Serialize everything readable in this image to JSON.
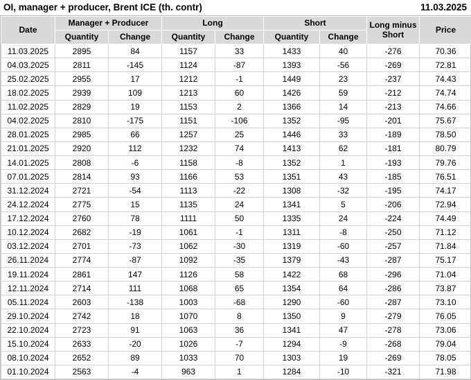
{
  "header": {
    "title": "OI, manager + producer, Brent ICE (th. contr)",
    "report_date": "11.03.2025"
  },
  "colors": {
    "positive_change": "#008000",
    "negative_change": "#cc0000",
    "header_bg": "#d9d9d9"
  },
  "table": {
    "col_date": "Date",
    "groups": {
      "mp": "Manager + Producer",
      "long": "Long",
      "short": "Short"
    },
    "sub": {
      "quantity": "Quantity",
      "change": "Change"
    },
    "col_lms": "Long minus Short",
    "col_price": "Price",
    "rows": [
      {
        "date": "11.03.2025",
        "mp_qty": 2895,
        "mp_chg": 84,
        "long_qty": 1157,
        "long_chg": 33,
        "short_qty": 1433,
        "short_chg": 40,
        "lms": -276,
        "price": "70.36"
      },
      {
        "date": "04.03.2025",
        "mp_qty": 2811,
        "mp_chg": -145,
        "long_qty": 1124,
        "long_chg": -87,
        "short_qty": 1393,
        "short_chg": -56,
        "lms": -269,
        "price": "72.81"
      },
      {
        "date": "25.02.2025",
        "mp_qty": 2955,
        "mp_chg": 17,
        "long_qty": 1212,
        "long_chg": -1,
        "short_qty": 1449,
        "short_chg": 23,
        "lms": -237,
        "price": "74.43"
      },
      {
        "date": "18.02.2025",
        "mp_qty": 2939,
        "mp_chg": 109,
        "long_qty": 1213,
        "long_chg": 60,
        "short_qty": 1426,
        "short_chg": 59,
        "lms": -212,
        "price": "74.74"
      },
      {
        "date": "11.02.2025",
        "mp_qty": 2829,
        "mp_chg": 19,
        "long_qty": 1153,
        "long_chg": 2,
        "short_qty": 1366,
        "short_chg": 14,
        "lms": -213,
        "price": "74.66"
      },
      {
        "date": "04.02.2025",
        "mp_qty": 2810,
        "mp_chg": -175,
        "long_qty": 1151,
        "long_chg": -106,
        "short_qty": 1352,
        "short_chg": -95,
        "lms": -201,
        "price": "75.67"
      },
      {
        "date": "28.01.2025",
        "mp_qty": 2985,
        "mp_chg": 66,
        "long_qty": 1257,
        "long_chg": 25,
        "short_qty": 1446,
        "short_chg": 33,
        "lms": -189,
        "price": "78.50"
      },
      {
        "date": "21.01.2025",
        "mp_qty": 2920,
        "mp_chg": 112,
        "long_qty": 1232,
        "long_chg": 74,
        "short_qty": 1413,
        "short_chg": 62,
        "lms": -181,
        "price": "80.79"
      },
      {
        "date": "14.01.2025",
        "mp_qty": 2808,
        "mp_chg": -6,
        "long_qty": 1158,
        "long_chg": -8,
        "short_qty": 1352,
        "short_chg": 1,
        "lms": -193,
        "price": "79.76"
      },
      {
        "date": "07.01.2025",
        "mp_qty": 2814,
        "mp_chg": 93,
        "long_qty": 1166,
        "long_chg": 53,
        "short_qty": 1351,
        "short_chg": 43,
        "lms": -185,
        "price": "76.51"
      },
      {
        "date": "31.12.2024",
        "mp_qty": 2721,
        "mp_chg": -54,
        "long_qty": 1113,
        "long_chg": -22,
        "short_qty": 1308,
        "short_chg": -32,
        "lms": -195,
        "price": "74.17"
      },
      {
        "date": "24.12.2024",
        "mp_qty": 2775,
        "mp_chg": 15,
        "long_qty": 1135,
        "long_chg": 24,
        "short_qty": 1341,
        "short_chg": 5,
        "lms": -206,
        "price": "72.94"
      },
      {
        "date": "17.12.2024",
        "mp_qty": 2760,
        "mp_chg": 78,
        "long_qty": 1111,
        "long_chg": 50,
        "short_qty": 1335,
        "short_chg": 24,
        "lms": -224,
        "price": "74.49"
      },
      {
        "date": "10.12.2024",
        "mp_qty": 2682,
        "mp_chg": -19,
        "long_qty": 1061,
        "long_chg": -1,
        "short_qty": 1311,
        "short_chg": -8,
        "lms": -250,
        "price": "71.12"
      },
      {
        "date": "03.12.2024",
        "mp_qty": 2701,
        "mp_chg": -73,
        "long_qty": 1062,
        "long_chg": -30,
        "short_qty": 1319,
        "short_chg": -60,
        "lms": -257,
        "price": "71.84"
      },
      {
        "date": "26.11.2024",
        "mp_qty": 2774,
        "mp_chg": -87,
        "long_qty": 1092,
        "long_chg": -35,
        "short_qty": 1379,
        "short_chg": -43,
        "lms": -287,
        "price": "75.17"
      },
      {
        "date": "19.11.2024",
        "mp_qty": 2861,
        "mp_chg": 147,
        "long_qty": 1126,
        "long_chg": 58,
        "short_qty": 1422,
        "short_chg": 68,
        "lms": -296,
        "price": "71.04"
      },
      {
        "date": "12.11.2024",
        "mp_qty": 2714,
        "mp_chg": 111,
        "long_qty": 1068,
        "long_chg": 65,
        "short_qty": 1354,
        "short_chg": 64,
        "lms": -286,
        "price": "73.87"
      },
      {
        "date": "05.11.2024",
        "mp_qty": 2603,
        "mp_chg": -138,
        "long_qty": 1003,
        "long_chg": -68,
        "short_qty": 1290,
        "short_chg": -60,
        "lms": -287,
        "price": "73.10"
      },
      {
        "date": "29.10.2024",
        "mp_qty": 2742,
        "mp_chg": 18,
        "long_qty": 1070,
        "long_chg": 8,
        "short_qty": 1350,
        "short_chg": 9,
        "lms": -279,
        "price": "76.05"
      },
      {
        "date": "22.10.2024",
        "mp_qty": 2723,
        "mp_chg": 91,
        "long_qty": 1063,
        "long_chg": 36,
        "short_qty": 1341,
        "short_chg": 47,
        "lms": -278,
        "price": "73.06"
      },
      {
        "date": "15.10.2024",
        "mp_qty": 2633,
        "mp_chg": -20,
        "long_qty": 1026,
        "long_chg": -7,
        "short_qty": 1294,
        "short_chg": -9,
        "lms": -268,
        "price": "79.04"
      },
      {
        "date": "08.10.2024",
        "mp_qty": 2652,
        "mp_chg": 89,
        "long_qty": 1033,
        "long_chg": 70,
        "short_qty": 1303,
        "short_chg": 19,
        "lms": -269,
        "price": "78.05"
      },
      {
        "date": "01.10.2024",
        "mp_qty": 2563,
        "mp_chg": -4,
        "long_qty": 963,
        "long_chg": 1,
        "short_qty": 1284,
        "short_chg": -10,
        "lms": -321,
        "price": "71.98"
      }
    ]
  }
}
